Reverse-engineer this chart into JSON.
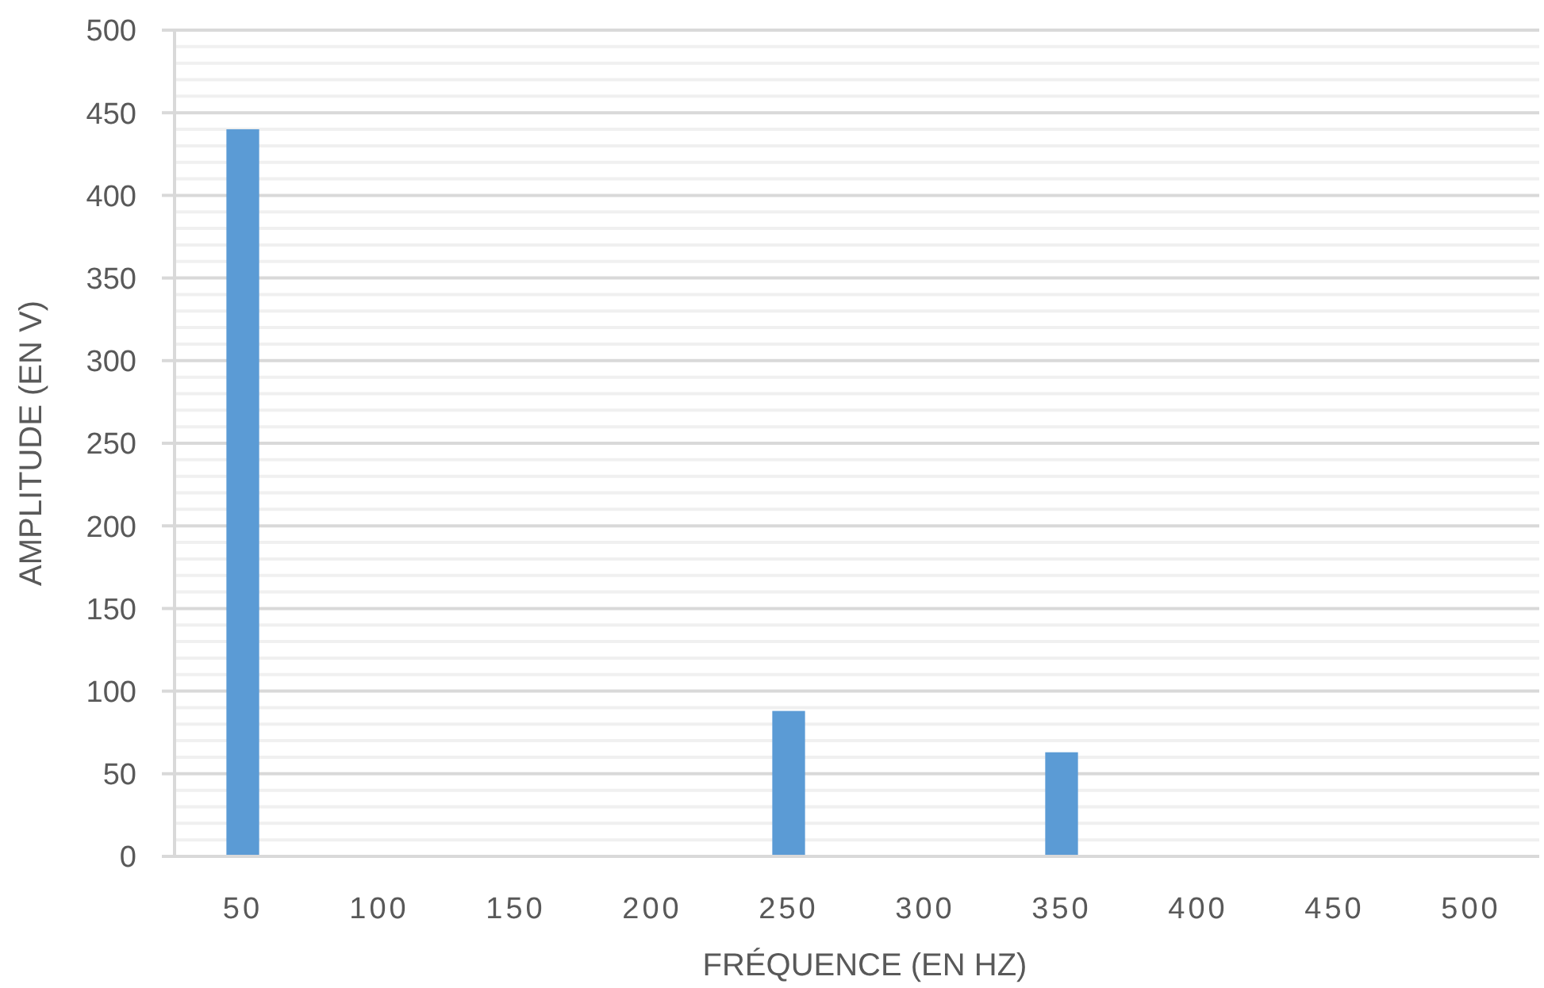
{
  "chart_data": {
    "type": "bar",
    "xlabel": "FRÉQUENCE (EN HZ)",
    "ylabel": "AMPLITUDE (EN V)",
    "categories": [
      "50",
      "100",
      "150",
      "200",
      "250",
      "300",
      "350",
      "400",
      "450",
      "500"
    ],
    "values": [
      440,
      0,
      0,
      0,
      88,
      0,
      63,
      0,
      0,
      0
    ],
    "color": "#5b9bd5",
    "ylim": [
      0,
      500
    ],
    "yticks": [
      0,
      {
        "value": 10,
        "label": null
      },
      {
        "value": 20,
        "label": null
      },
      {
        "value": 30,
        "label": null
      },
      {
        "value": 40,
        "label": null
      },
      50,
      {
        "value": 60,
        "label": null
      },
      {
        "value": 70,
        "label": null
      },
      {
        "value": 80,
        "label": null
      },
      {
        "value": 90,
        "label": null
      },
      100,
      {
        "value": 110,
        "label": null
      },
      {
        "value": 120,
        "label": null
      },
      {
        "value": 130,
        "label": null
      },
      {
        "value": 140,
        "label": null
      },
      150,
      {
        "value": 160,
        "label": null
      },
      {
        "value": 170,
        "label": null
      },
      {
        "value": 180,
        "label": null
      },
      {
        "value": 190,
        "label": null
      },
      200,
      {
        "value": 210,
        "label": null
      },
      {
        "value": 220,
        "label": null
      },
      {
        "value": 230,
        "label": null
      },
      {
        "value": 240,
        "label": null
      },
      250,
      {
        "value": 260,
        "label": null
      },
      {
        "value": 270,
        "label": null
      },
      {
        "value": 280,
        "label": null
      },
      {
        "value": 290,
        "label": null
      },
      300,
      {
        "value": 310,
        "label": null
      },
      {
        "value": 320,
        "label": null
      },
      {
        "value": 330,
        "label": null
      },
      {
        "value": 340,
        "label": null
      },
      350,
      {
        "value": 360,
        "label": null
      },
      {
        "value": 370,
        "label": null
      },
      {
        "value": 380,
        "label": null
      },
      {
        "value": 390,
        "label": null
      },
      400,
      {
        "value": 410,
        "label": null
      },
      {
        "value": 420,
        "label": null
      },
      {
        "value": 430,
        "label": null
      },
      {
        "value": 440,
        "label": null
      },
      450,
      {
        "value": 460,
        "label": null
      },
      {
        "value": 470,
        "label": null
      },
      {
        "value": 480,
        "label": null
      },
      {
        "value": 490,
        "label": null
      },
      500
    ],
    "grid": "y"
  }
}
